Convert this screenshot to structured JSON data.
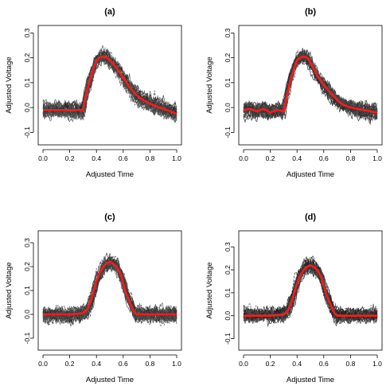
{
  "chart_data": [
    {
      "type": "line",
      "title": "(a)",
      "xlabel": "Adjusted Time",
      "ylabel": "Adjusted Voltage",
      "xlim": [
        0.0,
        1.0
      ],
      "ylim": [
        -0.15,
        0.33
      ],
      "xticks": [
        "0.0",
        "0.2",
        "0.4",
        "0.6",
        "0.8",
        "1.0"
      ],
      "yticks": [
        "-0.1",
        "0.0",
        "0.1",
        "0.2",
        "0.3"
      ],
      "grid": false,
      "series": [
        {
          "role": "mean",
          "color": "#ff1a1a",
          "x": [
            0.0,
            0.1,
            0.2,
            0.3,
            0.32,
            0.35,
            0.38,
            0.4,
            0.42,
            0.45,
            0.48,
            0.5,
            0.55,
            0.6,
            0.65,
            0.7,
            0.75,
            0.8,
            0.85,
            0.9,
            0.95,
            1.0
          ],
          "y": [
            -0.01,
            -0.01,
            -0.01,
            -0.01,
            0.05,
            0.11,
            0.16,
            0.19,
            0.2,
            0.205,
            0.2,
            0.19,
            0.16,
            0.12,
            0.08,
            0.05,
            0.03,
            0.015,
            0.005,
            -0.005,
            -0.015,
            -0.025
          ]
        },
        {
          "role": "individual-curves",
          "color": "#333333",
          "x": [
            0.0,
            0.1,
            0.2,
            0.3,
            0.32,
            0.35,
            0.38,
            0.4,
            0.42,
            0.45,
            0.48,
            0.5,
            0.55,
            0.6,
            0.65,
            0.7,
            0.75,
            0.8,
            0.85,
            0.9,
            0.95,
            1.0
          ],
          "y_low": [
            -0.09,
            -0.09,
            -0.09,
            -0.09,
            -0.03,
            0.04,
            0.09,
            0.12,
            0.13,
            0.135,
            0.13,
            0.12,
            0.09,
            0.05,
            0.01,
            -0.03,
            -0.05,
            -0.07,
            -0.08,
            -0.09,
            -0.1,
            -0.11
          ],
          "y_high": [
            0.07,
            0.07,
            0.07,
            0.07,
            0.13,
            0.19,
            0.24,
            0.27,
            0.28,
            0.285,
            0.28,
            0.27,
            0.24,
            0.2,
            0.16,
            0.13,
            0.11,
            0.1,
            0.09,
            0.08,
            0.07,
            0.06
          ]
        }
      ]
    },
    {
      "type": "line",
      "title": "(b)",
      "xlabel": "Adjusted Time",
      "ylabel": "Adjusted Voltage",
      "xlim": [
        0.0,
        1.0
      ],
      "ylim": [
        -0.15,
        0.33
      ],
      "xticks": [
        "0.0",
        "0.2",
        "0.4",
        "0.6",
        "0.8",
        "1.0"
      ],
      "yticks": [
        "-0.1",
        "0.0",
        "0.1",
        "0.2",
        "0.3"
      ],
      "grid": false,
      "series": [
        {
          "role": "mean",
          "color": "#ff1a1a",
          "x": [
            0.0,
            0.05,
            0.1,
            0.15,
            0.2,
            0.25,
            0.3,
            0.32,
            0.35,
            0.38,
            0.4,
            0.42,
            0.45,
            0.48,
            0.5,
            0.55,
            0.6,
            0.65,
            0.7,
            0.75,
            0.8,
            0.85,
            0.9,
            0.95,
            1.0
          ],
          "y": [
            -0.01,
            -0.005,
            -0.015,
            -0.005,
            -0.02,
            -0.01,
            -0.015,
            0.04,
            0.11,
            0.16,
            0.19,
            0.2,
            0.205,
            0.2,
            0.18,
            0.13,
            0.09,
            0.06,
            0.03,
            0.01,
            0.0,
            -0.005,
            -0.01,
            -0.015,
            -0.02
          ]
        },
        {
          "role": "individual-curves",
          "color": "#333333",
          "x": [
            0.0,
            0.05,
            0.1,
            0.15,
            0.2,
            0.25,
            0.3,
            0.32,
            0.35,
            0.38,
            0.4,
            0.42,
            0.45,
            0.48,
            0.5,
            0.55,
            0.6,
            0.65,
            0.7,
            0.75,
            0.8,
            0.85,
            0.9,
            0.95,
            1.0
          ],
          "y_low": [
            -0.09,
            -0.085,
            -0.095,
            -0.085,
            -0.1,
            -0.09,
            -0.095,
            -0.04,
            0.04,
            0.09,
            0.12,
            0.13,
            0.135,
            0.13,
            0.11,
            0.06,
            0.02,
            -0.02,
            -0.05,
            -0.07,
            -0.08,
            -0.09,
            -0.1,
            -0.105,
            -0.11
          ],
          "y_high": [
            0.07,
            0.075,
            0.065,
            0.075,
            0.06,
            0.07,
            0.065,
            0.12,
            0.18,
            0.23,
            0.26,
            0.27,
            0.275,
            0.27,
            0.25,
            0.2,
            0.16,
            0.14,
            0.11,
            0.09,
            0.08,
            0.075,
            0.07,
            0.07,
            0.07
          ]
        }
      ]
    },
    {
      "type": "line",
      "title": "(c)",
      "xlabel": "Adjusted Time",
      "ylabel": "Adjusted Voltage",
      "xlim": [
        0.0,
        1.0
      ],
      "ylim": [
        -0.15,
        0.35
      ],
      "xticks": [
        "0.0",
        "0.2",
        "0.4",
        "0.6",
        "0.8",
        "1.0"
      ],
      "yticks": [
        "-0.1",
        "0.0",
        "0.1",
        "0.2",
        "0.3"
      ],
      "grid": false,
      "series": [
        {
          "role": "mean",
          "color": "#ff1a1a",
          "x": [
            0.0,
            0.1,
            0.2,
            0.3,
            0.33,
            0.36,
            0.38,
            0.4,
            0.42,
            0.45,
            0.48,
            0.5,
            0.52,
            0.55,
            0.58,
            0.6,
            0.62,
            0.65,
            0.68,
            0.7,
            0.8,
            0.9,
            1.0
          ],
          "y": [
            0.0,
            0.0,
            0.0,
            0.005,
            0.02,
            0.06,
            0.1,
            0.14,
            0.17,
            0.2,
            0.215,
            0.22,
            0.215,
            0.2,
            0.17,
            0.13,
            0.09,
            0.05,
            0.01,
            0.0,
            0.0,
            0.0,
            0.0
          ]
        },
        {
          "role": "individual-curves",
          "color": "#333333",
          "x": [
            0.0,
            0.1,
            0.2,
            0.3,
            0.33,
            0.36,
            0.38,
            0.4,
            0.42,
            0.45,
            0.48,
            0.5,
            0.52,
            0.55,
            0.58,
            0.6,
            0.62,
            0.65,
            0.68,
            0.7,
            0.8,
            0.9,
            1.0
          ],
          "y_low": [
            -0.09,
            -0.09,
            -0.09,
            -0.085,
            -0.07,
            -0.03,
            0.01,
            0.06,
            0.1,
            0.13,
            0.145,
            0.15,
            0.145,
            0.13,
            0.1,
            0.06,
            0.02,
            -0.03,
            -0.07,
            -0.09,
            -0.09,
            -0.09,
            -0.09
          ],
          "y_high": [
            0.08,
            0.08,
            0.08,
            0.085,
            0.1,
            0.14,
            0.18,
            0.22,
            0.25,
            0.29,
            0.31,
            0.32,
            0.315,
            0.29,
            0.26,
            0.22,
            0.18,
            0.14,
            0.1,
            0.08,
            0.08,
            0.08,
            0.08
          ]
        }
      ]
    },
    {
      "type": "line",
      "title": "(d)",
      "xlabel": "Adjusted Time",
      "ylabel": "Adjusted Voltage",
      "xlim": [
        0.0,
        1.0
      ],
      "ylim": [
        -0.15,
        0.37
      ],
      "xticks": [
        "0.0",
        "0.2",
        "0.4",
        "0.6",
        "0.8",
        "1.0"
      ],
      "yticks": [
        "-0.1",
        "0.0",
        "0.1",
        "0.2",
        "0.3"
      ],
      "grid": false,
      "series": [
        {
          "role": "mean",
          "color": "#ff1a1a",
          "x": [
            0.0,
            0.1,
            0.2,
            0.3,
            0.33,
            0.36,
            0.38,
            0.4,
            0.42,
            0.45,
            0.48,
            0.5,
            0.52,
            0.55,
            0.58,
            0.6,
            0.62,
            0.65,
            0.68,
            0.7,
            0.8,
            0.9,
            1.0
          ],
          "y": [
            0.0,
            0.0,
            0.0,
            0.005,
            0.02,
            0.06,
            0.1,
            0.14,
            0.17,
            0.2,
            0.215,
            0.22,
            0.215,
            0.2,
            0.17,
            0.13,
            0.09,
            0.05,
            0.01,
            0.0,
            0.0,
            0.0,
            0.0
          ]
        },
        {
          "role": "individual-curves",
          "color": "#333333",
          "x": [
            0.0,
            0.1,
            0.2,
            0.3,
            0.33,
            0.36,
            0.38,
            0.4,
            0.42,
            0.45,
            0.48,
            0.5,
            0.52,
            0.55,
            0.58,
            0.6,
            0.62,
            0.65,
            0.68,
            0.7,
            0.8,
            0.9,
            1.0
          ],
          "y_low": [
            -0.09,
            -0.09,
            -0.09,
            -0.085,
            -0.07,
            -0.03,
            0.01,
            0.06,
            0.1,
            0.13,
            0.145,
            0.15,
            0.145,
            0.13,
            0.1,
            0.06,
            0.02,
            -0.03,
            -0.07,
            -0.09,
            -0.09,
            -0.09,
            -0.09
          ],
          "y_high": [
            0.08,
            0.08,
            0.08,
            0.085,
            0.1,
            0.14,
            0.18,
            0.22,
            0.25,
            0.29,
            0.32,
            0.33,
            0.325,
            0.3,
            0.26,
            0.22,
            0.18,
            0.14,
            0.1,
            0.08,
            0.08,
            0.08,
            0.08
          ]
        }
      ]
    }
  ]
}
